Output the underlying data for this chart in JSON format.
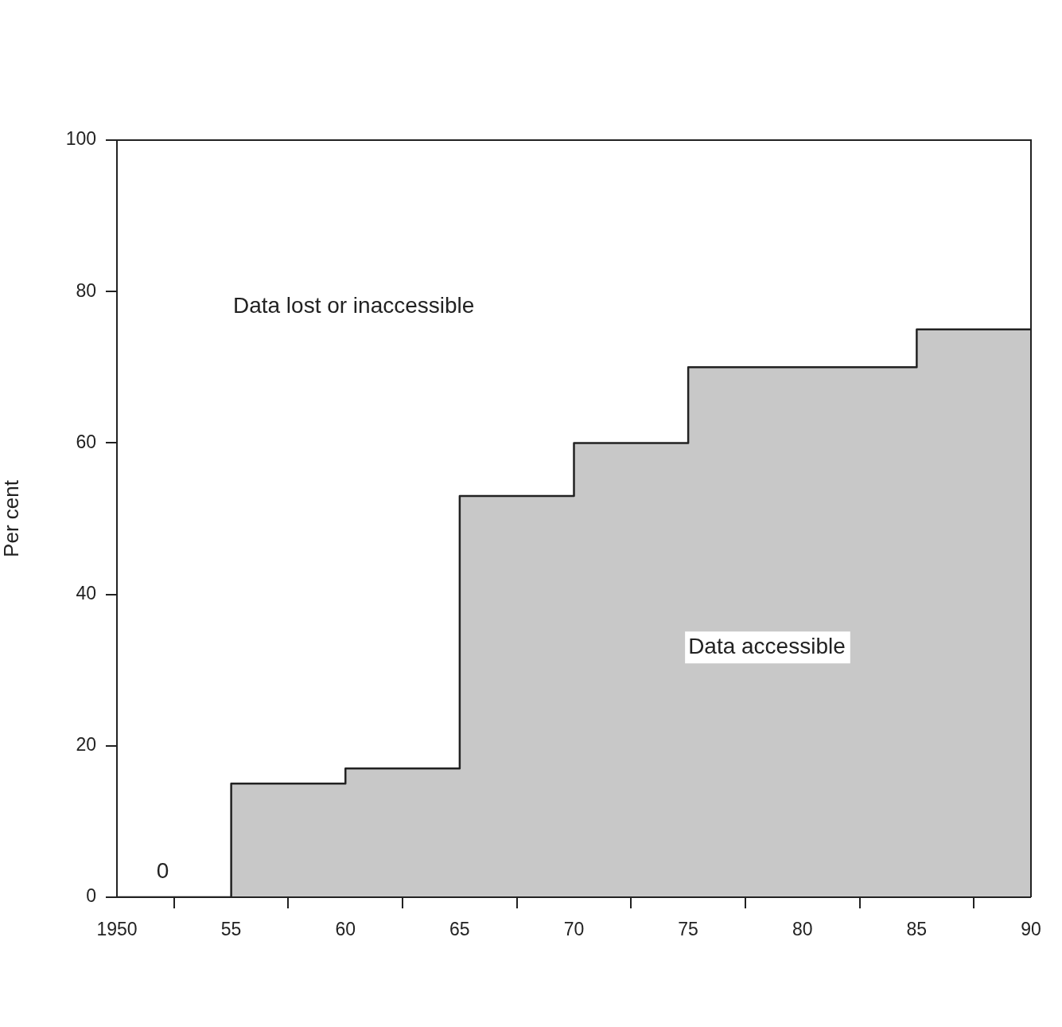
{
  "chart_data": {
    "type": "area",
    "ylabel": "Per cent",
    "x": [
      1950,
      1955,
      1955,
      1960,
      1960,
      1965,
      1965,
      1970,
      1970,
      1975,
      1975,
      1985,
      1985,
      1990
    ],
    "values": [
      0,
      0,
      15,
      15,
      17,
      17,
      53,
      53,
      60,
      60,
      70,
      70,
      75,
      75
    ],
    "color": "#c8c8c8",
    "xlim": [
      1950,
      1990
    ],
    "xticks": [
      1950,
      {
        "value": 1955,
        "label": "55"
      },
      {
        "value": 1960,
        "label": "60"
      },
      {
        "value": 1965,
        "label": "65"
      },
      {
        "value": 1970,
        "label": "70"
      },
      {
        "value": 1975,
        "label": "75"
      },
      {
        "value": 1980,
        "label": "80"
      },
      {
        "value": 1985,
        "label": "85"
      },
      {
        "value": 1990,
        "label": "90"
      }
    ],
    "ylim": [
      0,
      100
    ],
    "yticks": [
      0,
      20,
      40,
      60,
      80,
      100
    ],
    "grid": false,
    "legend": false,
    "annotations": [
      "Data lost or inaccessible",
      "Data accessible",
      {
        "text": "0",
        "x": 1952,
        "y": 0
      }
    ]
  }
}
